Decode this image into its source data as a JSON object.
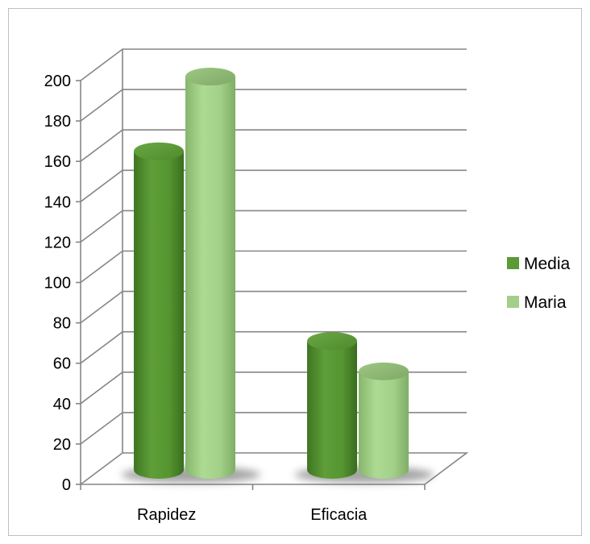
{
  "chart_data": {
    "type": "bar",
    "subtype": "3d-cylinder",
    "title": "",
    "xlabel": "",
    "ylabel": "",
    "categories": [
      "Rapidez",
      "Eficacia"
    ],
    "series": [
      {
        "name": "Media",
        "values": [
          157,
          63
        ],
        "color": "#5b9a35"
      },
      {
        "name": "Maria",
        "values": [
          194,
          48
        ],
        "color": "#a3cf8a"
      }
    ],
    "ylim": [
      0,
      200
    ],
    "yticks": [
      0,
      20,
      40,
      60,
      80,
      100,
      120,
      140,
      160,
      180,
      200
    ],
    "grid": true,
    "legend": "right"
  },
  "colors": {
    "grid": "#868686",
    "border": "#bfbfbf",
    "shadow": "#555555"
  }
}
